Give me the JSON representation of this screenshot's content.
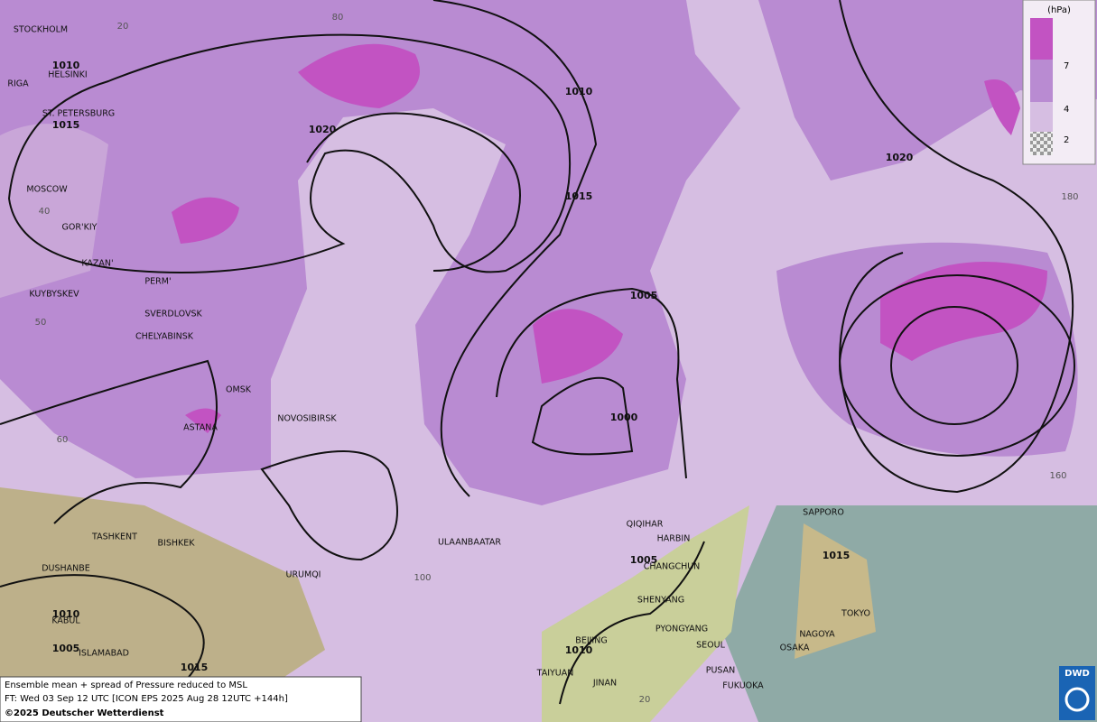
{
  "map": {
    "cities": [
      "STOCKHOLM",
      "HELSINKI",
      "RIGA",
      "ST. PETERSBURG",
      "MOSCOW",
      "GOR'KIY",
      "KAZAN'",
      "PERM'",
      "KUYBYSKEV",
      "SVERDLOVSK",
      "CHELYABINSK",
      "OMSK",
      "ASTANA",
      "NOVOSIBIRSK",
      "TASHKENT",
      "BISHKEK",
      "DUSHANBE",
      "URUMQI",
      "KABUL",
      "ISLAMABAD",
      "ULAANBAATAR",
      "QIQIHAR",
      "HARBIN",
      "CHANGCHUN",
      "SHENYANG",
      "PYONGYANG",
      "SEOUL",
      "BEIJING",
      "TAIYUAN",
      "JINAN",
      "PUSAN",
      "FUKUOKA",
      "OSAKA",
      "NAGOYA",
      "TOKYO",
      "SAPPORO"
    ],
    "isobar_labels": [
      1010,
      1015,
      1020,
      1010,
      1015,
      1005,
      1000,
      1020,
      1015,
      1005,
      1010,
      1010,
      1005,
      1015
    ],
    "grid_labels": [
      20,
      80,
      40,
      50,
      60,
      100,
      20,
      180,
      160
    ]
  },
  "legend": {
    "unit": "(hPa)",
    "levels": [
      7,
      4,
      2
    ]
  },
  "footer": {
    "lines": [
      "Ensemble mean + spread of Pressure reduced to MSL",
      "FT: Wed 03 Sep 12 UTC [ICON EPS 2025 Aug 28 12UTC +144h]",
      "©2025 Deutscher Wetterdienst"
    ]
  },
  "logo": "DWD"
}
